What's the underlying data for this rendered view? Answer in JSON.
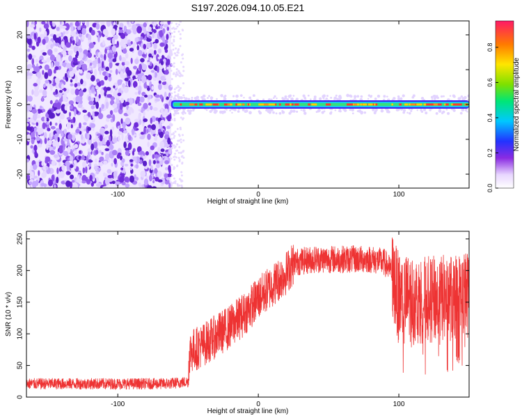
{
  "chart_data": [
    {
      "type": "heatmap",
      "title": "S197.2026.094.10.05.E21",
      "xlabel": "Height of straight line (km)",
      "ylabel": "Frequency (Hz)",
      "xlim": [
        -165,
        150
      ],
      "ylim": [
        -24,
        24
      ],
      "x_ticks": [
        -100,
        0,
        100
      ],
      "y_ticks": [
        -20,
        -10,
        0,
        10,
        20
      ],
      "colorbar": {
        "label": "Normalized spectral amplitude",
        "range": [
          0.0,
          0.95
        ],
        "ticks": [
          0.0,
          0.2,
          0.4,
          0.6,
          0.8
        ]
      },
      "regions": [
        {
          "name": "noise",
          "x_range": [
            -165,
            -62
          ],
          "freq_range": [
            -24,
            24
          ],
          "amplitude": "0.1-0.3"
        },
        {
          "name": "carrier",
          "x_range": [
            -62,
            150
          ],
          "freq_center": 0,
          "amplitude": "0.3-0.9"
        }
      ]
    },
    {
      "type": "line",
      "xlabel": "Height of straight line (km)",
      "ylabel": "SNR (10 * v/v)",
      "xlim": [
        -165,
        150
      ],
      "ylim": [
        0,
        262
      ],
      "x_ticks": [
        -100,
        0,
        100
      ],
      "y_ticks": [
        0,
        50,
        100,
        150,
        200,
        250
      ],
      "color": "#ee3333",
      "series": [
        {
          "name": "SNR",
          "x": [
            -165,
            -140,
            -115,
            -90,
            -65,
            -50,
            -49,
            -40,
            -30,
            -20,
            -10,
            0,
            10,
            20,
            25,
            40,
            60,
            80,
            90,
            95,
            100,
            120,
            140,
            150
          ],
          "values": [
            22,
            22,
            22,
            22,
            22,
            25,
            75,
            85,
            100,
            115,
            135,
            160,
            180,
            200,
            215,
            220,
            220,
            220,
            215,
            200,
            165,
            160,
            165,
            170
          ]
        }
      ]
    }
  ]
}
